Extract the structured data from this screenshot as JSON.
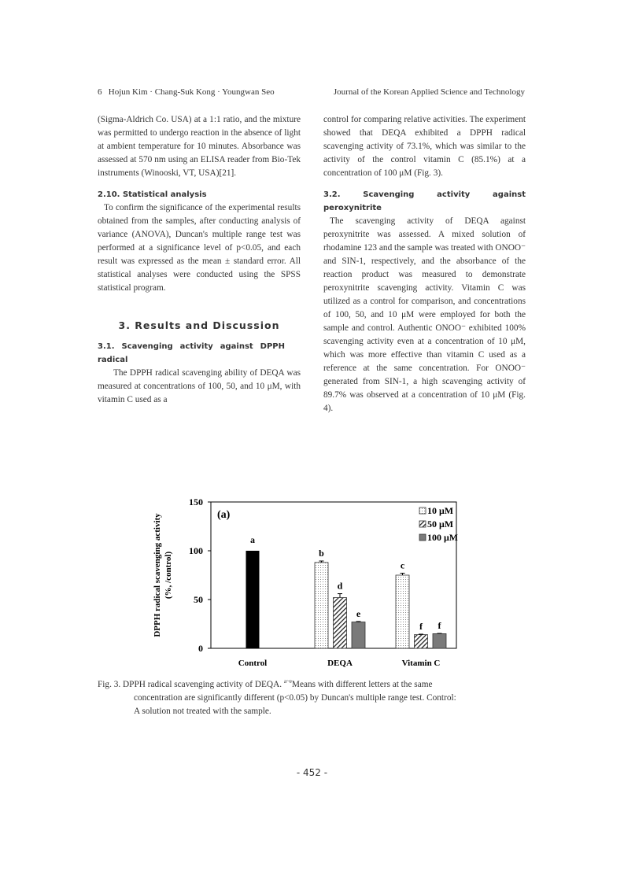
{
  "header": {
    "page": "6",
    "authors": "Hojun Kim · Chang-Suk Kong · Youngwan Seo",
    "journal": "Journal of the Korean Applied Science and Technology"
  },
  "left": {
    "p1": "(Sigma-Aldrich Co. USA) at a 1:1 ratio, and the mixture was permitted to undergo reaction in the absence of light at ambient temperature for 10 minutes. Absorbance was assessed at 570 nm using an ELISA reader from Bio-Tek instruments (Winooski, VT, USA)[21].",
    "h210": "2.10. Statistical analysis",
    "p2": "To confirm the significance of the experimental results obtained from the samples, after conducting analysis of variance (ANOVA), Duncan's multiple range test was performed at a significance level of p<0.05, and each result was expressed as the mean ± standard error. All statistical analyses were conducted using the SPSS statistical program.",
    "h3": "3. Results and Discussion",
    "h31": "3.1. Scavenging activity against DPPH radical",
    "p3": "The DPPH radical scavenging ability of DEQA was measured at concentrations of 100, 50, and 10 μM, with vitamin C used as a"
  },
  "right": {
    "p1": "control for comparing relative activities. The experiment showed that DEQA exhibited a DPPH radical scavenging activity of 73.1%, which was similar to the activity of the control vitamin C (85.1%) at a concentration of 100 μM (Fig. 3).",
    "h32": "3.2. Scavenging activity against peroxynitrite",
    "p2": "The scavenging activity of DEQA against peroxynitrite was assessed. A mixed solution of rhodamine 123 and the sample was treated with ONOO⁻ and SIN-1, respectively, and the absorbance of the reaction product was measured to demonstrate peroxynitrite scavenging activity. Vitamin C was utilized as a control for comparison, and concentrations of 100, 50, and 10 μM were employed for both the sample and control. Authentic ONOO⁻ exhibited 100% scavenging activity even at a concentration of 10 μM, which was more effective than vitamin C used as a reference at the same concentration. For ONOO⁻ generated from SIN-1, a high scavenging activity of 89.7% was observed at a concentration of 10 μM (Fig. 4)."
  },
  "chart_data": {
    "type": "bar",
    "panel_label": "(a)",
    "ylabel": "DPPH radical scavenging activity (%, /control)",
    "ylim": [
      0,
      150
    ],
    "yticks": [
      "0",
      "50",
      "100",
      "150"
    ],
    "categories": [
      "Control",
      "DEQA",
      "Vitamin C"
    ],
    "legend_position": "top-right",
    "control": {
      "value": 100,
      "letter": "a",
      "color": "#000000"
    },
    "series": [
      {
        "name": "10 μM",
        "pattern": "dotted",
        "values": [
          null,
          88,
          75
        ],
        "errors": [
          null,
          1.5,
          2
        ],
        "letters": [
          null,
          "b",
          "c"
        ]
      },
      {
        "name": "50 μM",
        "pattern": "hatched",
        "values": [
          null,
          52,
          14
        ],
        "errors": [
          null,
          4,
          0.5
        ],
        "letters": [
          null,
          "d",
          "f"
        ]
      },
      {
        "name": "100 μM",
        "pattern": "gray",
        "color": "#7a7a7a",
        "values": [
          null,
          27,
          15
        ],
        "errors": [
          null,
          0.5,
          0.3
        ],
        "letters": [
          null,
          "e",
          "f"
        ]
      }
    ]
  },
  "caption": {
    "lead": "Fig. 3. DPPH radical scavenging activity of DEQA.",
    "sup": "a~e",
    "rest1": "Means with different letters at the same",
    "rest2": "concentration are significantly different (p<0.05) by Duncan's multiple range test. Control:",
    "rest3": "A solution not treated with the sample."
  },
  "page_number": "- 452 -"
}
